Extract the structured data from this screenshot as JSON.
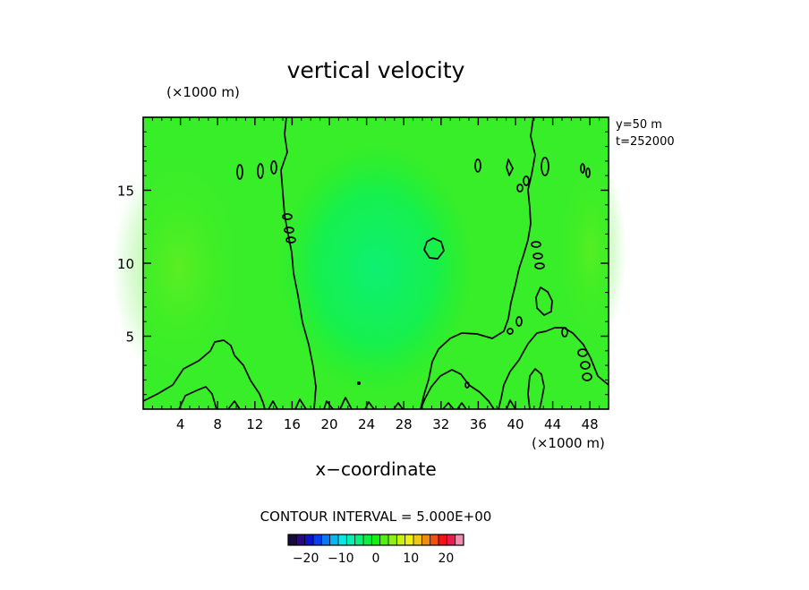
{
  "chart_data": {
    "type": "heatmap",
    "title": "vertical velocity",
    "xlabel": "x−coordinate",
    "ylabel": "",
    "x_scale_label": "(×1000 m)",
    "y_scale_label": "(×1000 m)",
    "xlim": [
      0,
      50
    ],
    "ylim": [
      0,
      20
    ],
    "x_ticks": [
      4,
      8,
      12,
      16,
      20,
      24,
      28,
      32,
      36,
      40,
      44,
      48
    ],
    "y_ticks": [
      5,
      10,
      15
    ],
    "x_tick_labels": [
      "4",
      "8",
      "12",
      "16",
      "20",
      "24",
      "28",
      "32",
      "36",
      "40",
      "44",
      "48"
    ],
    "y_tick_labels": [
      "5",
      "10",
      "15"
    ],
    "annotations": [
      "y=50  m",
      "t=252000"
    ],
    "contour_interval_text": "CONTOUR INTERVAL = 5.000E+00",
    "contour_interval": 5.0,
    "colorbar": {
      "ticks": [
        -20,
        -10,
        0,
        10,
        20
      ],
      "tick_labels": [
        "−20",
        "−10",
        "0",
        "10",
        "20"
      ],
      "range": [
        -25,
        25
      ],
      "colors": [
        "#1a0a3a",
        "#2a0a7a",
        "#0a14c8",
        "#0a3cf0",
        "#0a78f0",
        "#0ab4f0",
        "#0ae6e6",
        "#0af0b4",
        "#0af078",
        "#0af03c",
        "#14f014",
        "#50f014",
        "#8cf014",
        "#c8f014",
        "#f0f014",
        "#f0c814",
        "#f08c14",
        "#f05014",
        "#f01414",
        "#e61e50",
        "#f08cb4"
      ]
    },
    "field": {
      "background_value": 0,
      "weak_updraft_regions_x": [
        [
          0,
          14
        ],
        [
          44,
          50
        ]
      ],
      "weak_downdraft_center": {
        "x": 25,
        "y": 10
      }
    },
    "grid": false
  }
}
